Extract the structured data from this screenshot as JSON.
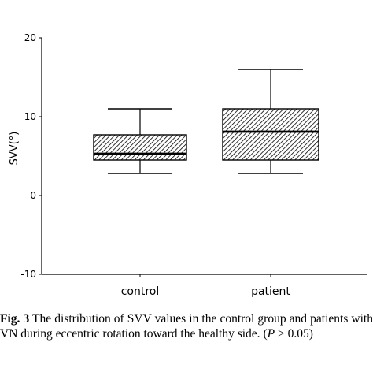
{
  "chart_data": {
    "type": "box",
    "ylabel": "SVV(°)",
    "xlabel": "",
    "ylim": [
      -10,
      20
    ],
    "yticks": [
      -10,
      0,
      10,
      20
    ],
    "ytick_labels": [
      "-10",
      "0",
      "10",
      "20"
    ],
    "categories": [
      "control",
      "patient"
    ],
    "boxes": [
      {
        "category": "control",
        "min": 2.8,
        "q1": 4.5,
        "median": 5.3,
        "q3": 7.7,
        "max": 11.0
      },
      {
        "category": "patient",
        "min": 2.8,
        "q1": 4.5,
        "median": 8.1,
        "q3": 11.0,
        "max": 16.0
      }
    ],
    "box_fill": "hatched",
    "grid": false
  },
  "caption": {
    "label": "Fig. 3",
    "text": "The distribution of SVV values in the control group and patients with VN during eccentric rotation toward the healthy side.",
    "stat_open": "(",
    "stat_var": "P",
    "stat_rest": " > 0.05)"
  }
}
